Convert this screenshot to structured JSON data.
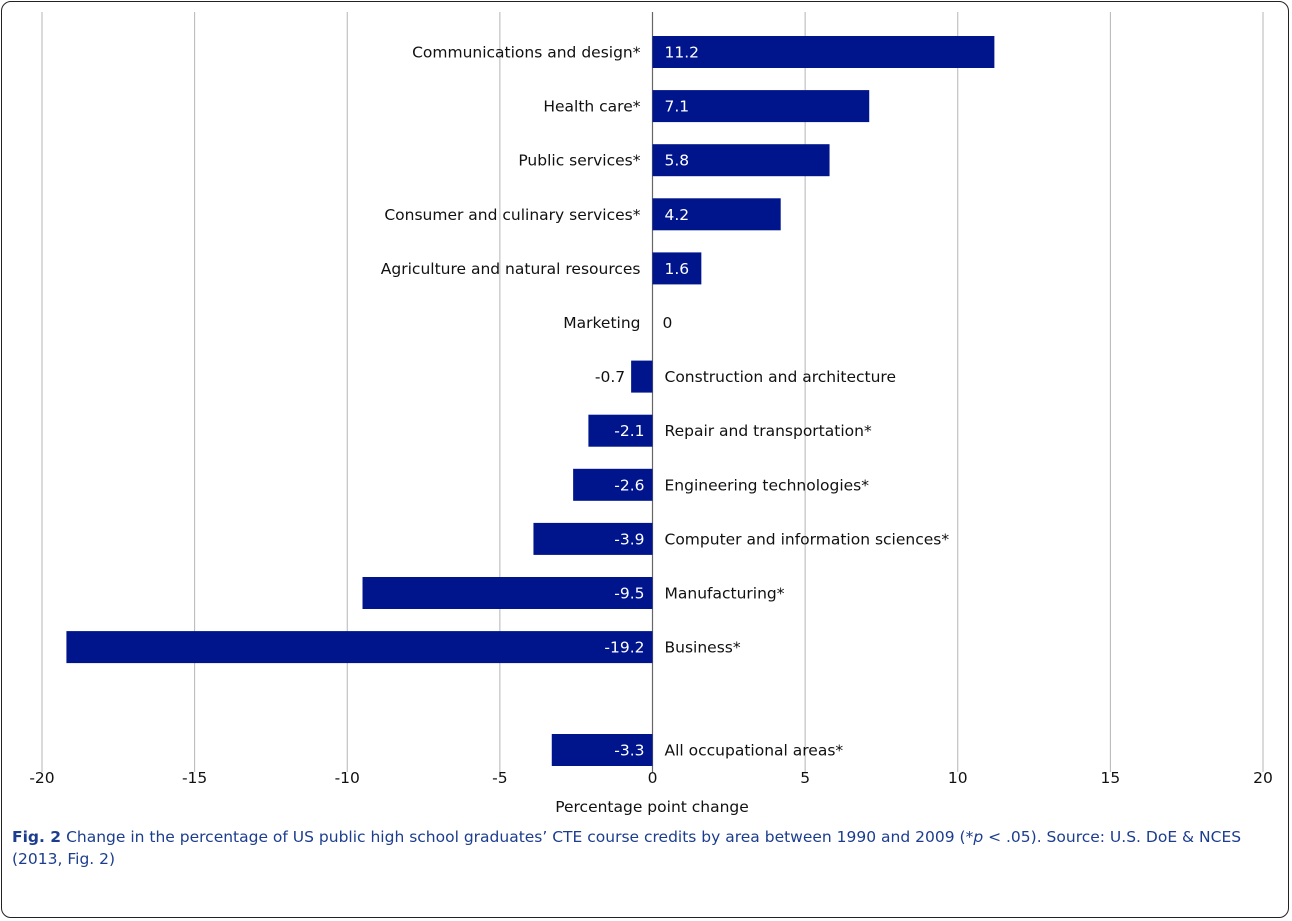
{
  "chart_data": {
    "type": "bar",
    "orientation": "horizontal",
    "categories": [
      "Communications and design*",
      "Health care*",
      "Public services*",
      "Consumer and culinary services*",
      "Agriculture and natural resources",
      "Marketing",
      "Construction and architecture",
      "Repair and transportation*",
      "Engineering technologies*",
      "Computer and information sciences*",
      "Manufacturing*",
      "Business*",
      "All occupational areas*"
    ],
    "values": [
      11.2,
      7.1,
      5.8,
      4.2,
      1.6,
      0,
      -0.7,
      -2.1,
      -2.6,
      -3.9,
      -9.5,
      -19.2,
      -3.3
    ],
    "value_labels": [
      "11.2",
      "7.1",
      "5.8",
      "4.2",
      "1.6",
      "0",
      "-0.7",
      "-2.1",
      "-2.6",
      "-3.9",
      "-9.5",
      "-19.2",
      "-3.3"
    ],
    "xlabel": "Percentage point change",
    "ylabel": "",
    "xlim": [
      -20,
      20
    ],
    "xticks": [
      -20,
      -15,
      -10,
      -5,
      0,
      5,
      10,
      15,
      20
    ],
    "grid": true,
    "bar_color": "#00148c"
  },
  "caption": {
    "fig_label": "Fig. 2",
    "text_before_p": "Change in the percentage of US public high school graduates’ CTE course credits by area between 1990 and 2009 (*",
    "p_symbol": "p",
    "text_after_p": " < .05). Source: U.S. DoE & NCES (2013, Fig. 2)"
  }
}
